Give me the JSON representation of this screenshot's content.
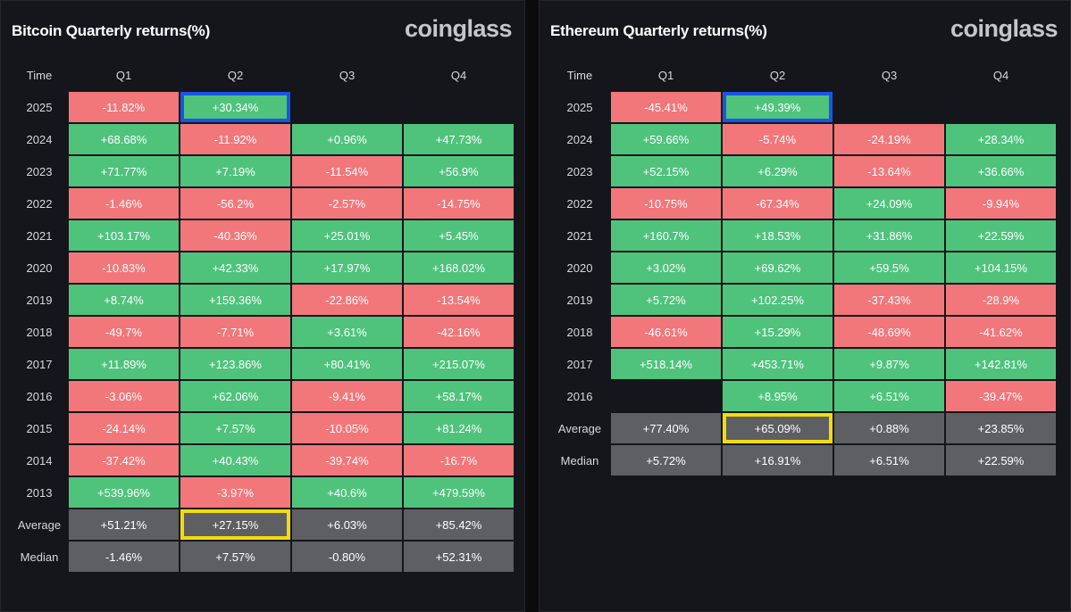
{
  "colors": {
    "background": "#0b0b0d",
    "panel": "#15161b",
    "positive": "#4fc37c",
    "negative": "#f2777a",
    "stat": "#5e5f63",
    "highlight_current": "#1a55e6",
    "highlight_average": "#f2dc0a"
  },
  "chart_data": [
    {
      "type": "table",
      "title": "Bitcoin Quarterly returns(%)",
      "brand": "coinglass",
      "columns": [
        "Time",
        "Q1",
        "Q2",
        "Q3",
        "Q4"
      ],
      "rows": [
        {
          "label": "2025",
          "values": [
            "-11.82%",
            "+30.34%",
            "",
            ""
          ]
        },
        {
          "label": "2024",
          "values": [
            "+68.68%",
            "-11.92%",
            "+0.96%",
            "+47.73%"
          ]
        },
        {
          "label": "2023",
          "values": [
            "+71.77%",
            "+7.19%",
            "-11.54%",
            "+56.9%"
          ]
        },
        {
          "label": "2022",
          "values": [
            "-1.46%",
            "-56.2%",
            "-2.57%",
            "-14.75%"
          ]
        },
        {
          "label": "2021",
          "values": [
            "+103.17%",
            "-40.36%",
            "+25.01%",
            "+5.45%"
          ]
        },
        {
          "label": "2020",
          "values": [
            "-10.83%",
            "+42.33%",
            "+17.97%",
            "+168.02%"
          ]
        },
        {
          "label": "2019",
          "values": [
            "+8.74%",
            "+159.36%",
            "-22.86%",
            "-13.54%"
          ]
        },
        {
          "label": "2018",
          "values": [
            "-49.7%",
            "-7.71%",
            "+3.61%",
            "-42.16%"
          ]
        },
        {
          "label": "2017",
          "values": [
            "+11.89%",
            "+123.86%",
            "+80.41%",
            "+215.07%"
          ]
        },
        {
          "label": "2016",
          "values": [
            "-3.06%",
            "+62.06%",
            "-9.41%",
            "+58.17%"
          ]
        },
        {
          "label": "2015",
          "values": [
            "-24.14%",
            "+7.57%",
            "-10.05%",
            "+81.24%"
          ]
        },
        {
          "label": "2014",
          "values": [
            "-37.42%",
            "+40.43%",
            "-39.74%",
            "-16.7%"
          ]
        },
        {
          "label": "2013",
          "values": [
            "+539.96%",
            "-3.97%",
            "+40.6%",
            "+479.59%"
          ]
        }
      ],
      "stats": [
        {
          "label": "Average",
          "values": [
            "+51.21%",
            "+27.15%",
            "+6.03%",
            "+85.42%"
          ]
        },
        {
          "label": "Median",
          "values": [
            "-1.46%",
            "+7.57%",
            "-0.80%",
            "+52.31%"
          ]
        }
      ],
      "highlights": [
        {
          "row": "2025",
          "quarter": "Q2",
          "color": "#1a55e6"
        },
        {
          "row": "Average",
          "quarter": "Q2",
          "color": "#f2dc0a"
        }
      ]
    },
    {
      "type": "table",
      "title": "Ethereum Quarterly returns(%)",
      "brand": "coinglass",
      "columns": [
        "Time",
        "Q1",
        "Q2",
        "Q3",
        "Q4"
      ],
      "rows": [
        {
          "label": "2025",
          "values": [
            "-45.41%",
            "+49.39%",
            "",
            ""
          ]
        },
        {
          "label": "2024",
          "values": [
            "+59.66%",
            "-5.74%",
            "-24.19%",
            "+28.34%"
          ]
        },
        {
          "label": "2023",
          "values": [
            "+52.15%",
            "+6.29%",
            "-13.64%",
            "+36.66%"
          ]
        },
        {
          "label": "2022",
          "values": [
            "-10.75%",
            "-67.34%",
            "+24.09%",
            "-9.94%"
          ]
        },
        {
          "label": "2021",
          "values": [
            "+160.7%",
            "+18.53%",
            "+31.86%",
            "+22.59%"
          ]
        },
        {
          "label": "2020",
          "values": [
            "+3.02%",
            "+69.62%",
            "+59.5%",
            "+104.15%"
          ]
        },
        {
          "label": "2019",
          "values": [
            "+5.72%",
            "+102.25%",
            "-37.43%",
            "-28.9%"
          ]
        },
        {
          "label": "2018",
          "values": [
            "-46.61%",
            "+15.29%",
            "-48.69%",
            "-41.62%"
          ]
        },
        {
          "label": "2017",
          "values": [
            "+518.14%",
            "+453.71%",
            "+9.87%",
            "+142.81%"
          ]
        },
        {
          "label": "2016",
          "values": [
            "",
            "+8.95%",
            "+6.51%",
            "-39.47%"
          ]
        }
      ],
      "stats": [
        {
          "label": "Average",
          "values": [
            "+77.40%",
            "+65.09%",
            "+0.88%",
            "+23.85%"
          ]
        },
        {
          "label": "Median",
          "values": [
            "+5.72%",
            "+16.91%",
            "+6.51%",
            "+22.59%"
          ]
        }
      ],
      "highlights": [
        {
          "row": "2025",
          "quarter": "Q2",
          "color": "#1a55e6"
        },
        {
          "row": "Average",
          "quarter": "Q2",
          "color": "#f2dc0a"
        }
      ]
    }
  ]
}
